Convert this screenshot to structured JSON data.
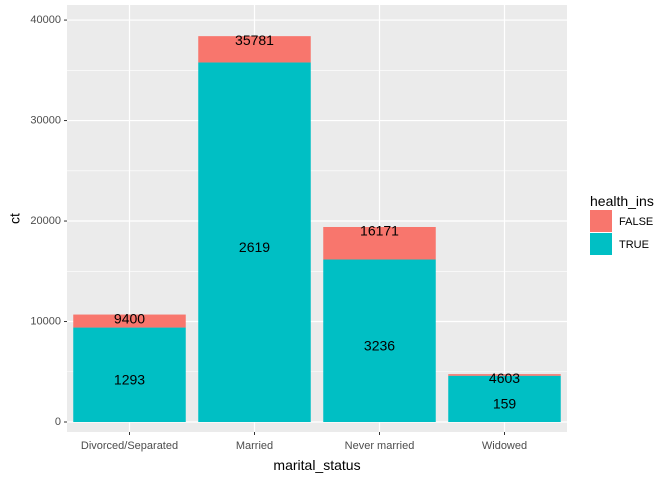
{
  "chart_data": {
    "type": "bar",
    "stacked": true,
    "xlabel": "marital_status",
    "ylabel": "ct",
    "ylim": [
      0,
      40000
    ],
    "yticks": [
      0,
      10000,
      20000,
      30000,
      40000
    ],
    "categories": [
      "Divorced/Separated",
      "Married",
      "Never married",
      "Widowed"
    ],
    "series": [
      {
        "name": "TRUE",
        "color": "#00BFC4",
        "values": [
          9400,
          35781,
          16171,
          4603
        ]
      },
      {
        "name": "FALSE",
        "color": "#F8766D",
        "values": [
          1293,
          2619,
          3236,
          159
        ]
      }
    ],
    "bar_labels": {
      "upper": [
        "9400",
        "35781",
        "16171",
        "4603"
      ],
      "lower": [
        "1293",
        "2619",
        "3236",
        "159"
      ]
    },
    "legend": {
      "title": "health_ins",
      "position": "right",
      "items": [
        {
          "label": "FALSE",
          "color": "#F8766D"
        },
        {
          "label": "TRUE",
          "color": "#00BFC4"
        }
      ]
    },
    "grid": true,
    "panel_background": "#EBEBEB"
  }
}
